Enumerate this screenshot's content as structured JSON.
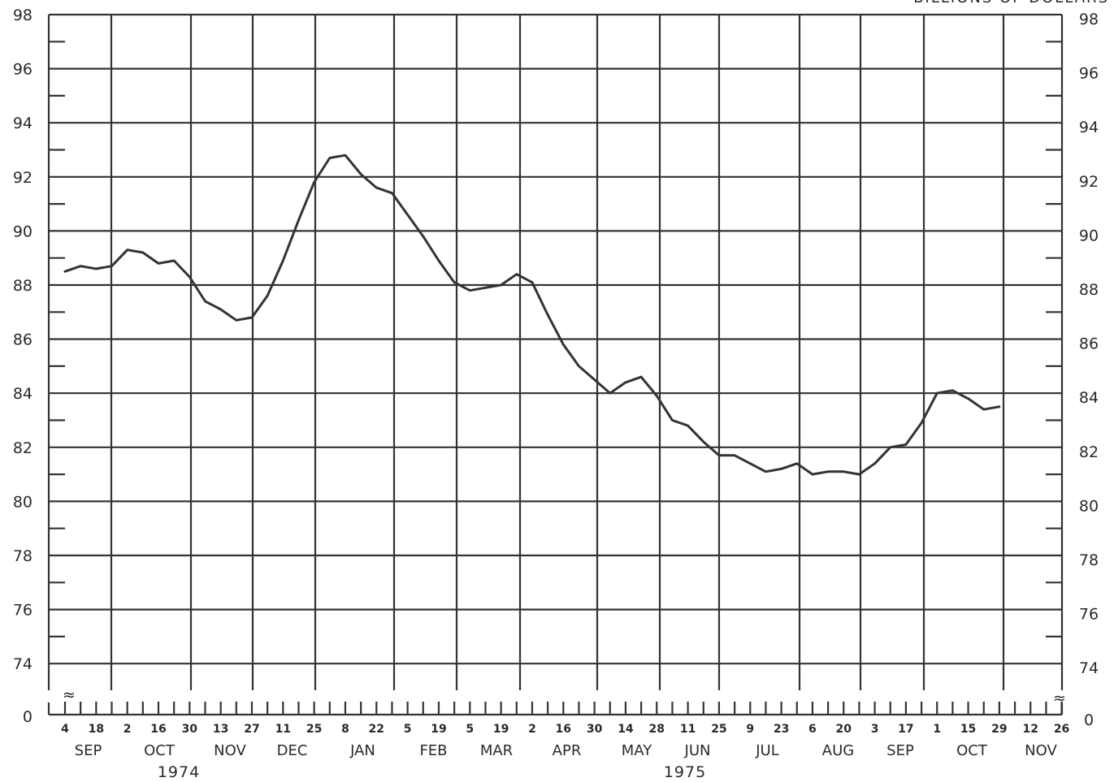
{
  "chart_data": {
    "type": "line",
    "right_unit_label": "BILLIONS OF DOLLARS",
    "y_axis_break": "≈",
    "y_ticks": [
      "98",
      "96",
      "94",
      "92",
      "90",
      "88",
      "86",
      "84",
      "82",
      "80",
      "78",
      "76",
      "74",
      "0"
    ],
    "ylim": [
      73,
      98
    ],
    "weeks": [
      "4",
      "18",
      "2",
      "16",
      "30",
      "13",
      "27",
      "11",
      "25",
      "8",
      "22",
      "5",
      "19",
      "5",
      "19",
      "2",
      "16",
      "30",
      "14",
      "28",
      "11",
      "25",
      "9",
      "23",
      "6",
      "20",
      "3",
      "17",
      "1",
      "15",
      "29",
      "12",
      "26"
    ],
    "months": [
      "SEP",
      "OCT",
      "NOV",
      "DEC",
      "JAN",
      "FEB",
      "MAR",
      "APR",
      "MAY",
      "JUN",
      "JUL",
      "AUG",
      "SEP",
      "OCT",
      "NOV"
    ],
    "years": [
      "1974",
      "1975"
    ],
    "grid": true,
    "series": [
      {
        "x": [
          0,
          0.5,
          1,
          1.5,
          2,
          2.5,
          3,
          3.5,
          4,
          4.5,
          5,
          5.5,
          6,
          6.5,
          7,
          7.5,
          8,
          8.5,
          9,
          9.5,
          10,
          10.5,
          11,
          11.5,
          12,
          12.5,
          13,
          13.5,
          14,
          14.5,
          15,
          15.5,
          16,
          16.5,
          17,
          17.5,
          18,
          18.5,
          19,
          19.5,
          20,
          20.5,
          21,
          21.5,
          22,
          22.5,
          23,
          23.5,
          24,
          24.5,
          25,
          25.5,
          26,
          26.5,
          27,
          27.5,
          28,
          28.5,
          29,
          29.5,
          30
        ],
        "values": [
          88.5,
          88.7,
          88.6,
          88.7,
          89.3,
          89.2,
          88.8,
          88.9,
          88.3,
          87.4,
          87.1,
          86.7,
          86.8,
          87.6,
          88.9,
          90.4,
          91.8,
          92.7,
          92.8,
          92.1,
          91.6,
          91.4,
          90.6,
          89.8,
          88.9,
          88.1,
          87.8,
          87.9,
          88.0,
          88.4,
          88.1,
          86.9,
          85.8,
          85.0,
          84.5,
          84.0,
          84.4,
          84.6,
          83.9,
          83.0,
          82.8,
          82.2,
          81.7,
          81.7,
          81.4,
          81.1,
          81.2,
          81.4,
          81.0,
          81.1,
          81.1,
          81.0,
          81.4,
          82.0,
          82.1,
          82.9,
          84.0,
          84.1,
          83.8,
          83.4,
          83.5
        ],
        "color": "#333333"
      }
    ]
  }
}
